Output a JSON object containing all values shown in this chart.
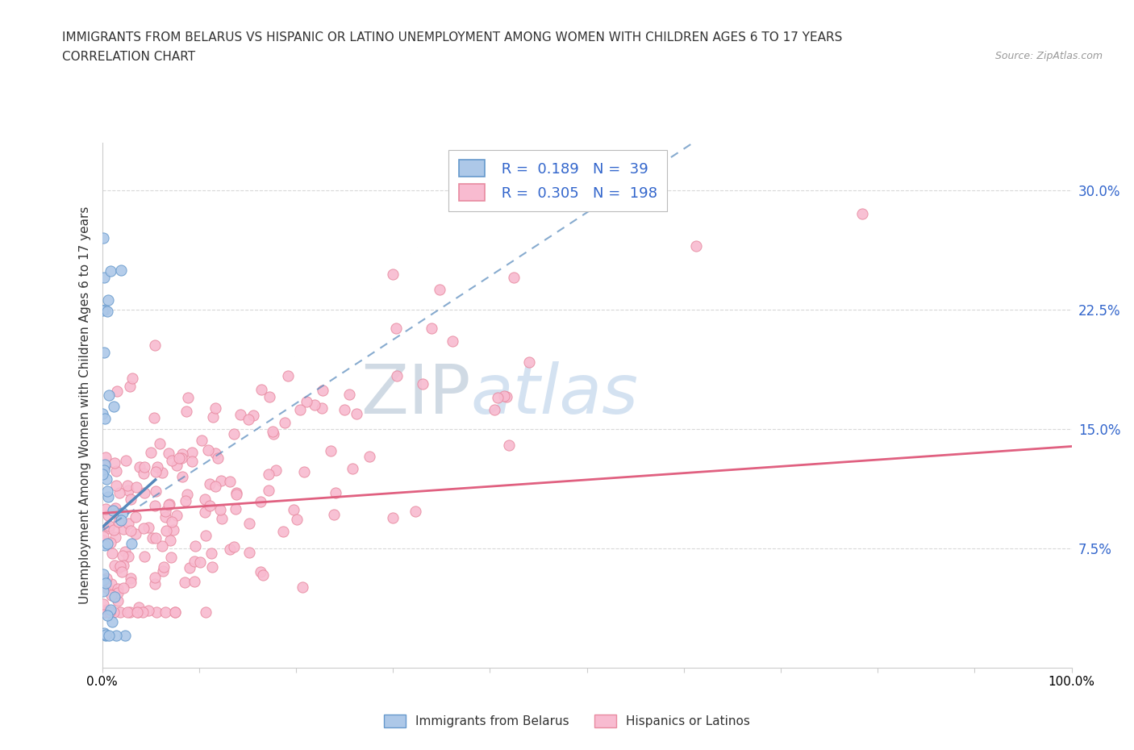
{
  "title_line1": "IMMIGRANTS FROM BELARUS VS HISPANIC OR LATINO UNEMPLOYMENT AMONG WOMEN WITH CHILDREN AGES 6 TO 17 YEARS",
  "title_line2": "CORRELATION CHART",
  "source_text": "Source: ZipAtlas.com",
  "ylabel": "Unemployment Among Women with Children Ages 6 to 17 years",
  "xlim": [
    0.0,
    1.0
  ],
  "ylim": [
    0.0,
    0.33
  ],
  "yticks": [
    0.075,
    0.15,
    0.225,
    0.3
  ],
  "ytick_labels": [
    "7.5%",
    "15.0%",
    "22.5%",
    "30.0%"
  ],
  "xtick_labels": [
    "0.0%",
    "",
    "",
    "",
    "",
    "",
    "",
    "",
    "",
    "",
    "100.0%"
  ],
  "watermark_zip": "ZIP",
  "watermark_atlas": "atlas",
  "legend_R1": "0.189",
  "legend_N1": "39",
  "legend_R2": "0.305",
  "legend_N2": "198",
  "blue_fill": "#adc8e8",
  "blue_edge": "#6699cc",
  "pink_fill": "#f8bbd0",
  "pink_edge": "#e88aa0",
  "trend_blue_color": "#5588bb",
  "trend_pink_color": "#e06080",
  "background_color": "#ffffff",
  "grid_color": "#d8d8d8",
  "title_color": "#333333",
  "source_color": "#999999",
  "axis_label_color": "#333333",
  "tick_color": "#3366cc",
  "legend_text_color": "#3366cc"
}
